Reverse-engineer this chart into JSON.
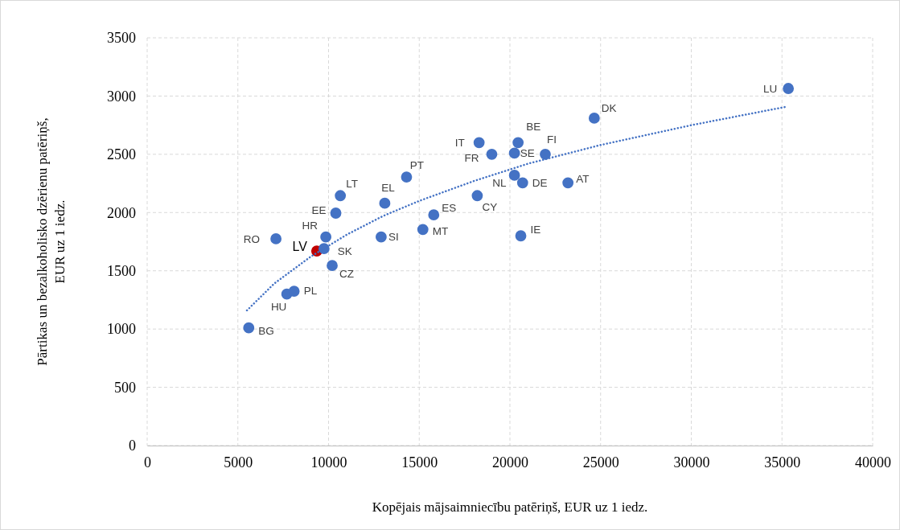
{
  "chart_data": {
    "type": "scatter",
    "xlabel": "Kopējais mājsaimniecību patēriņš, EUR uz 1 iedz.",
    "ylabel": "Pārtikas un bezalkoholisko dzērienu patēriņš,\nEUR uz 1 iedz.",
    "xlim": [
      0,
      40000
    ],
    "ylim": [
      0,
      3500
    ],
    "xticks": [
      0,
      5000,
      10000,
      15000,
      20000,
      25000,
      30000,
      35000,
      40000
    ],
    "yticks": [
      0,
      500,
      1000,
      1500,
      2000,
      2500,
      3000,
      3500
    ],
    "grid": true,
    "marker": "circle",
    "series": [
      {
        "color": "#4472c4",
        "x": [
          5600,
          7100,
          7700,
          8100,
          9350,
          9750,
          9850,
          10200,
          10400,
          10650,
          13100,
          12900,
          14300,
          15200,
          15800,
          18200,
          18300,
          19000,
          20250,
          20450,
          20250,
          20700,
          20600,
          21950,
          23200,
          24650,
          35350
        ],
        "values": [
          1010,
          1775,
          1300,
          1325,
          1670,
          1690,
          1790,
          1545,
          1995,
          2145,
          2080,
          1790,
          2305,
          1855,
          1980,
          2145,
          2600,
          2500,
          2510,
          2600,
          2320,
          2255,
          1800,
          2500,
          2255,
          2810,
          3065
        ],
        "colors": [
          "#4472c4",
          "#4472c4",
          "#4472c4",
          "#4472c4",
          "#c00000",
          "#4472c4",
          "#4472c4",
          "#4472c4",
          "#4472c4",
          "#4472c4",
          "#4472c4",
          "#4472c4",
          "#4472c4",
          "#4472c4",
          "#4472c4",
          "#4472c4",
          "#4472c4",
          "#4472c4",
          "#4472c4",
          "#4472c4",
          "#4472c4",
          "#4472c4",
          "#4472c4",
          "#4472c4",
          "#4472c4",
          "#4472c4",
          "#4472c4"
        ]
      },
      {
        "type": "line",
        "color": "#4472c4",
        "line_style": "dotted",
        "marker": "none",
        "x": [
          5500,
          7000,
          9000,
          11000,
          13000,
          15000,
          18000,
          21000,
          25000,
          30000,
          35300
        ],
        "values": [
          1160,
          1390,
          1620,
          1810,
          1970,
          2100,
          2270,
          2420,
          2580,
          2750,
          2910
        ]
      }
    ],
    "annotations": [
      {
        "text": "BG",
        "x": 5600,
        "y": 1010
      },
      {
        "text": "RO",
        "x": 7100,
        "y": 1775
      },
      {
        "text": "HU",
        "x": 7700,
        "y": 1300
      },
      {
        "text": "PL",
        "x": 8100,
        "y": 1325
      },
      {
        "text": "LV",
        "x": 9350,
        "y": 1670
      },
      {
        "text": "SK",
        "x": 9750,
        "y": 1690
      },
      {
        "text": "HR",
        "x": 9850,
        "y": 1790
      },
      {
        "text": "CZ",
        "x": 10200,
        "y": 1545
      },
      {
        "text": "EE",
        "x": 10400,
        "y": 1995
      },
      {
        "text": "LT",
        "x": 10650,
        "y": 2145
      },
      {
        "text": "EL",
        "x": 13100,
        "y": 2080
      },
      {
        "text": "SI",
        "x": 12900,
        "y": 1790
      },
      {
        "text": "PT",
        "x": 14300,
        "y": 2305
      },
      {
        "text": "MT",
        "x": 15200,
        "y": 1855
      },
      {
        "text": "ES",
        "x": 15800,
        "y": 1980
      },
      {
        "text": "CY",
        "x": 18200,
        "y": 2145
      },
      {
        "text": "IT",
        "x": 18300,
        "y": 2600
      },
      {
        "text": "FR",
        "x": 19000,
        "y": 2500
      },
      {
        "text": "SE",
        "x": 20250,
        "y": 2510
      },
      {
        "text": "BE",
        "x": 20450,
        "y": 2600
      },
      {
        "text": "NL",
        "x": 20250,
        "y": 2320
      },
      {
        "text": "DE",
        "x": 20700,
        "y": 2255
      },
      {
        "text": "IE",
        "x": 20600,
        "y": 1800
      },
      {
        "text": "FI",
        "x": 21950,
        "y": 2500
      },
      {
        "text": "AT",
        "x": 23200,
        "y": 2255
      },
      {
        "text": "DK",
        "x": 24650,
        "y": 2810
      },
      {
        "text": "LU",
        "x": 35350,
        "y": 3065
      }
    ]
  }
}
